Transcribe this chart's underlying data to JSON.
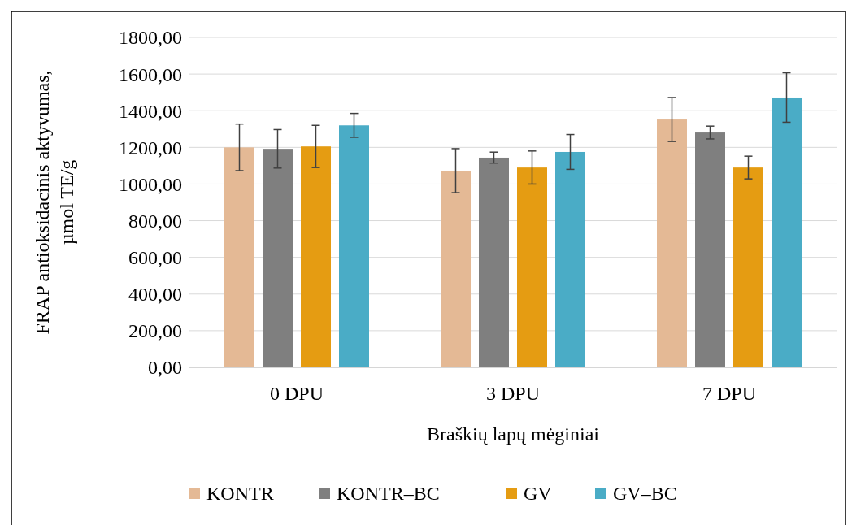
{
  "chart_data": {
    "type": "bar",
    "xlabel": "Braškių lapų mėginiai",
    "ylabel": "FRAP antioksidacinis aktyvumas,\nµmol TE/g",
    "categories": [
      "0 DPU",
      "3 DPU",
      "7 DPU"
    ],
    "series": [
      {
        "name": "KONTR",
        "color": "#e4b995",
        "values": [
          1200,
          1073,
          1352
        ],
        "errors": [
          127,
          120,
          120
        ]
      },
      {
        "name": "KONTR–BC",
        "color": "#7f7f7f",
        "values": [
          1192,
          1144,
          1281
        ],
        "errors": [
          105,
          30,
          35
        ]
      },
      {
        "name": "GV",
        "color": "#e59c12",
        "values": [
          1205,
          1090,
          1090
        ],
        "errors": [
          115,
          90,
          62
        ]
      },
      {
        "name": "GV–BC",
        "color": "#4aacc6",
        "values": [
          1320,
          1175,
          1472
        ],
        "errors": [
          65,
          95,
          135
        ]
      }
    ],
    "ylim": [
      0,
      1800
    ],
    "yticks": [
      {
        "value": 0,
        "label": "0,00"
      },
      {
        "value": 200,
        "label": "200,00"
      },
      {
        "value": 400,
        "label": "400,00"
      },
      {
        "value": 600,
        "label": "600,00"
      },
      {
        "value": 800,
        "label": "800,00"
      },
      {
        "value": 1000,
        "label": "1000,00"
      },
      {
        "value": 1200,
        "label": "1200,00"
      },
      {
        "value": 1400,
        "label": "1400,00"
      },
      {
        "value": 1600,
        "label": "1600,00"
      },
      {
        "value": 1800,
        "label": "1800,00"
      }
    ],
    "grid": "y",
    "legend": "bottom"
  }
}
